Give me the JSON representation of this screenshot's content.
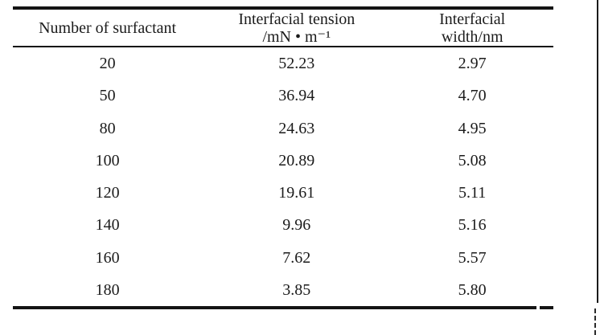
{
  "document": {
    "background_color": "#ffffff",
    "rule_color": "#141414",
    "text_color": "#1b1b1b"
  },
  "table": {
    "columns": [
      {
        "id": "surfactant-count",
        "header_lines": [
          "Number of surfactant"
        ]
      },
      {
        "id": "interfacial-tension",
        "header_lines": [
          "Interfacial tension",
          "/mN • m⁻¹"
        ]
      },
      {
        "id": "interfacial-width",
        "header_lines": [
          "Interfacial",
          "width/nm"
        ]
      }
    ],
    "rows": [
      [
        "20",
        "52.23",
        "2.97"
      ],
      [
        "50",
        "36.94",
        "4.70"
      ],
      [
        "80",
        "24.63",
        "4.95"
      ],
      [
        "100",
        "20.89",
        "5.08"
      ],
      [
        "120",
        "19.61",
        "5.11"
      ],
      [
        "140",
        "9.96",
        "5.16"
      ],
      [
        "160",
        "7.62",
        "5.57"
      ],
      [
        "180",
        "3.85",
        "5.80"
      ]
    ]
  }
}
